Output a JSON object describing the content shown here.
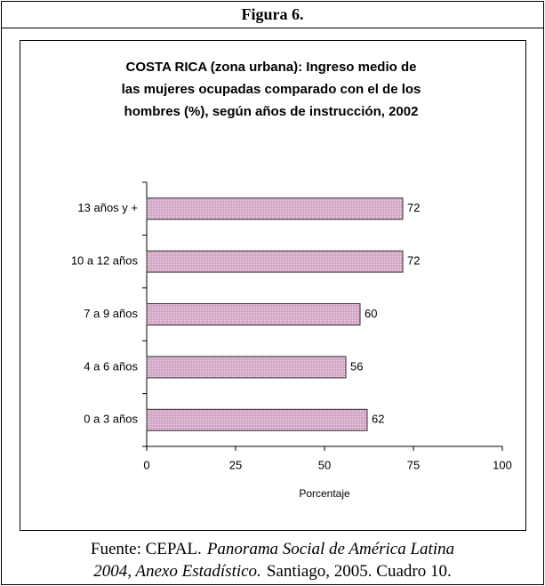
{
  "header": {
    "title": "Figura 6."
  },
  "chart_data": {
    "type": "bar",
    "orientation": "horizontal",
    "title": "COSTA RICA (zona urbana): Ingreso medio de las mujeres ocupadas comparado con el de los hombres (%), según años de instrucción, 2002",
    "categories": [
      "0 a 3 años",
      "4 a 6 años",
      "7 a 9 años",
      "10 a 12 años",
      "13 años y +"
    ],
    "values": [
      62,
      56,
      60,
      72,
      72
    ],
    "color": "#d6a8c8",
    "xlabel": "Porcentaje",
    "xlim": [
      0,
      100
    ],
    "xticks": [
      0,
      25,
      50,
      75,
      100
    ],
    "grid": false
  },
  "footer": {
    "line1": [
      "Fuente: CEPAL.",
      "Panorama Social de América Latina"
    ],
    "line2": [
      "2004, Anexo Estadístico.",
      "Santiago, 2005. Cuadro 10."
    ]
  }
}
